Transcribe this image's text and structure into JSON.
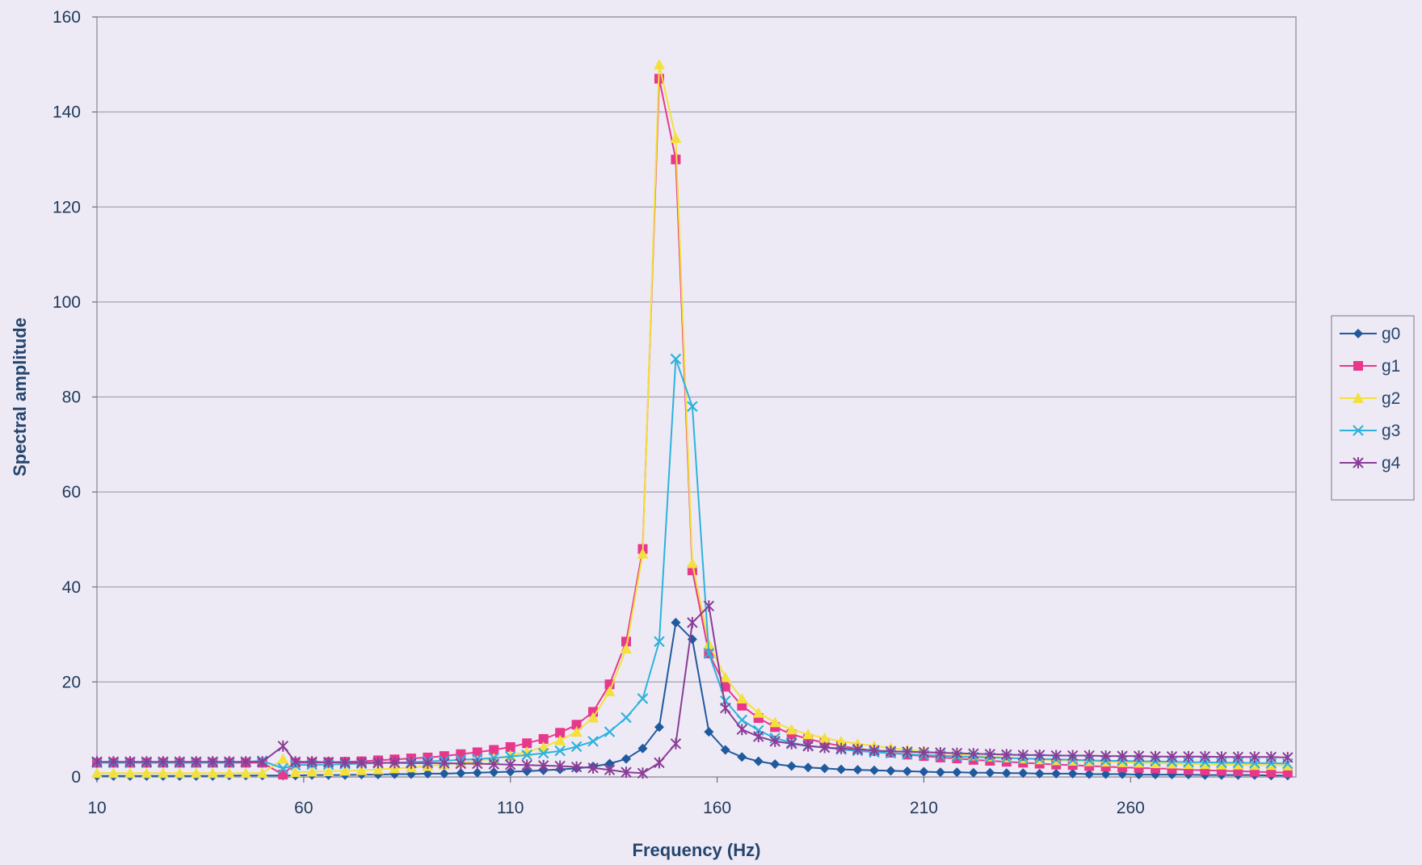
{
  "chart_data": {
    "type": "line",
    "title": "",
    "xlabel": "Frequency (Hz)",
    "ylabel": "Spectral amplitude",
    "xlim": [
      10,
      300
    ],
    "ylim": [
      0,
      160
    ],
    "xticks": [
      10,
      60,
      110,
      160,
      210,
      260
    ],
    "yticks": [
      0,
      20,
      40,
      60,
      80,
      100,
      120,
      140,
      160
    ],
    "grid": "horizontal",
    "legend_position": "right",
    "x": [
      10,
      14,
      18,
      22,
      26,
      30,
      34,
      38,
      42,
      46,
      50,
      55,
      58,
      62,
      66,
      70,
      74,
      78,
      82,
      86,
      90,
      94,
      98,
      102,
      106,
      110,
      114,
      118,
      122,
      126,
      130,
      134,
      138,
      142,
      146,
      150,
      154,
      158,
      162,
      166,
      170,
      174,
      178,
      182,
      186,
      190,
      194,
      198,
      202,
      206,
      210,
      214,
      218,
      222,
      226,
      230,
      234,
      238,
      242,
      246,
      250,
      254,
      258,
      262,
      266,
      270,
      274,
      278,
      282,
      286,
      290,
      294,
      298
    ],
    "series": [
      {
        "name": "g0",
        "color": "#1f5a9e",
        "marker": "diamond",
        "values": [
          0.2,
          0.2,
          0.2,
          0.2,
          0.2,
          0.2,
          0.2,
          0.2,
          0.3,
          0.3,
          0.3,
          0.3,
          0.3,
          0.4,
          0.4,
          0.4,
          0.5,
          0.5,
          0.6,
          0.6,
          0.7,
          0.7,
          0.8,
          0.9,
          1.0,
          1.1,
          1.2,
          1.4,
          1.6,
          1.8,
          2.2,
          2.8,
          3.8,
          6.0,
          10.5,
          32.5,
          29.0,
          9.5,
          5.7,
          4.2,
          3.3,
          2.7,
          2.3,
          2.0,
          1.8,
          1.6,
          1.5,
          1.4,
          1.3,
          1.2,
          1.1,
          1.0,
          1.0,
          0.9,
          0.9,
          0.8,
          0.8,
          0.7,
          0.7,
          0.7,
          0.6,
          0.6,
          0.6,
          0.5,
          0.5,
          0.5,
          0.5,
          0.4,
          0.4,
          0.4,
          0.4,
          0.3,
          0.3
        ]
      },
      {
        "name": "g1",
        "color": "#e8388c",
        "marker": "square",
        "values": [
          3.0,
          3.0,
          3.0,
          3.0,
          3.0,
          3.0,
          3.0,
          3.0,
          3.0,
          3.0,
          3.0,
          0.5,
          3.0,
          3.0,
          3.1,
          3.2,
          3.3,
          3.5,
          3.7,
          3.9,
          4.1,
          4.4,
          4.8,
          5.2,
          5.7,
          6.3,
          7.1,
          8.0,
          9.3,
          11.0,
          13.7,
          19.5,
          28.5,
          48.0,
          147.0,
          130.0,
          43.5,
          26.0,
          19.0,
          15.0,
          12.4,
          10.5,
          9.0,
          8.0,
          7.2,
          6.5,
          6.0,
          5.5,
          5.1,
          4.7,
          4.4,
          4.1,
          3.9,
          3.6,
          3.4,
          3.2,
          3.0,
          2.8,
          2.6,
          2.5,
          2.3,
          2.2,
          2.0,
          1.9,
          1.8,
          1.7,
          1.5,
          1.4,
          1.3,
          1.2,
          1.1,
          1.0,
          0.9
        ]
      },
      {
        "name": "g2",
        "color": "#f3e03c",
        "marker": "triangle",
        "values": [
          0.8,
          0.8,
          0.8,
          0.8,
          0.8,
          0.8,
          0.8,
          0.8,
          0.8,
          0.8,
          0.8,
          3.8,
          1.0,
          1.1,
          1.2,
          1.3,
          1.4,
          1.6,
          1.8,
          2.0,
          2.3,
          2.6,
          3.0,
          3.4,
          3.9,
          4.5,
          5.3,
          6.3,
          7.7,
          9.5,
          12.5,
          18.0,
          27.0,
          47.0,
          150.0,
          134.5,
          45.0,
          28.0,
          21.0,
          16.5,
          13.5,
          11.5,
          10.0,
          9.0,
          8.2,
          7.5,
          7.0,
          6.5,
          6.1,
          5.7,
          5.4,
          5.1,
          4.8,
          4.5,
          4.3,
          4.1,
          3.9,
          3.7,
          3.5,
          3.4,
          3.3,
          3.2,
          3.1,
          3.0,
          2.9,
          2.8,
          2.7,
          2.7,
          2.6,
          2.6,
          2.5,
          2.5,
          2.4
        ]
      },
      {
        "name": "g3",
        "color": "#2eb2dc",
        "marker": "x",
        "values": [
          3.0,
          3.0,
          3.0,
          3.0,
          3.0,
          3.0,
          3.0,
          3.0,
          3.0,
          3.2,
          3.4,
          1.8,
          2.5,
          2.6,
          2.6,
          2.7,
          2.8,
          2.9,
          3.0,
          3.1,
          3.3,
          3.4,
          3.6,
          3.8,
          4.0,
          4.3,
          4.6,
          5.0,
          5.5,
          6.4,
          7.5,
          9.5,
          12.5,
          16.5,
          28.5,
          88.0,
          78.0,
          26.0,
          16.0,
          12.0,
          9.8,
          8.2,
          7.2,
          6.6,
          6.2,
          5.8,
          5.5,
          5.2,
          5.0,
          4.8,
          4.6,
          4.5,
          4.3,
          4.2,
          4.1,
          4.0,
          3.9,
          3.8,
          3.7,
          3.6,
          3.5,
          3.4,
          3.4,
          3.3,
          3.3,
          3.2,
          3.1,
          3.1,
          3.0,
          3.0,
          2.9,
          2.9,
          2.8
        ]
      },
      {
        "name": "g4",
        "color": "#8a3d96",
        "marker": "asterisk",
        "values": [
          3.2,
          3.2,
          3.2,
          3.2,
          3.2,
          3.2,
          3.2,
          3.2,
          3.2,
          3.2,
          3.2,
          6.5,
          3.2,
          3.2,
          3.1,
          3.0,
          3.0,
          3.0,
          3.0,
          2.9,
          2.9,
          2.9,
          2.8,
          2.8,
          2.7,
          2.6,
          2.5,
          2.4,
          2.3,
          2.1,
          1.9,
          1.5,
          1.0,
          0.8,
          3.0,
          7.0,
          32.5,
          36.0,
          14.5,
          10.0,
          8.5,
          7.5,
          7.0,
          6.5,
          6.2,
          6.0,
          5.8,
          5.6,
          5.4,
          5.3,
          5.2,
          5.1,
          5.0,
          4.9,
          4.8,
          4.7,
          4.6,
          4.6,
          4.5,
          4.5,
          4.5,
          4.4,
          4.4,
          4.4,
          4.3,
          4.3,
          4.3,
          4.3,
          4.2,
          4.2,
          4.2,
          4.2,
          4.1
        ]
      }
    ]
  }
}
